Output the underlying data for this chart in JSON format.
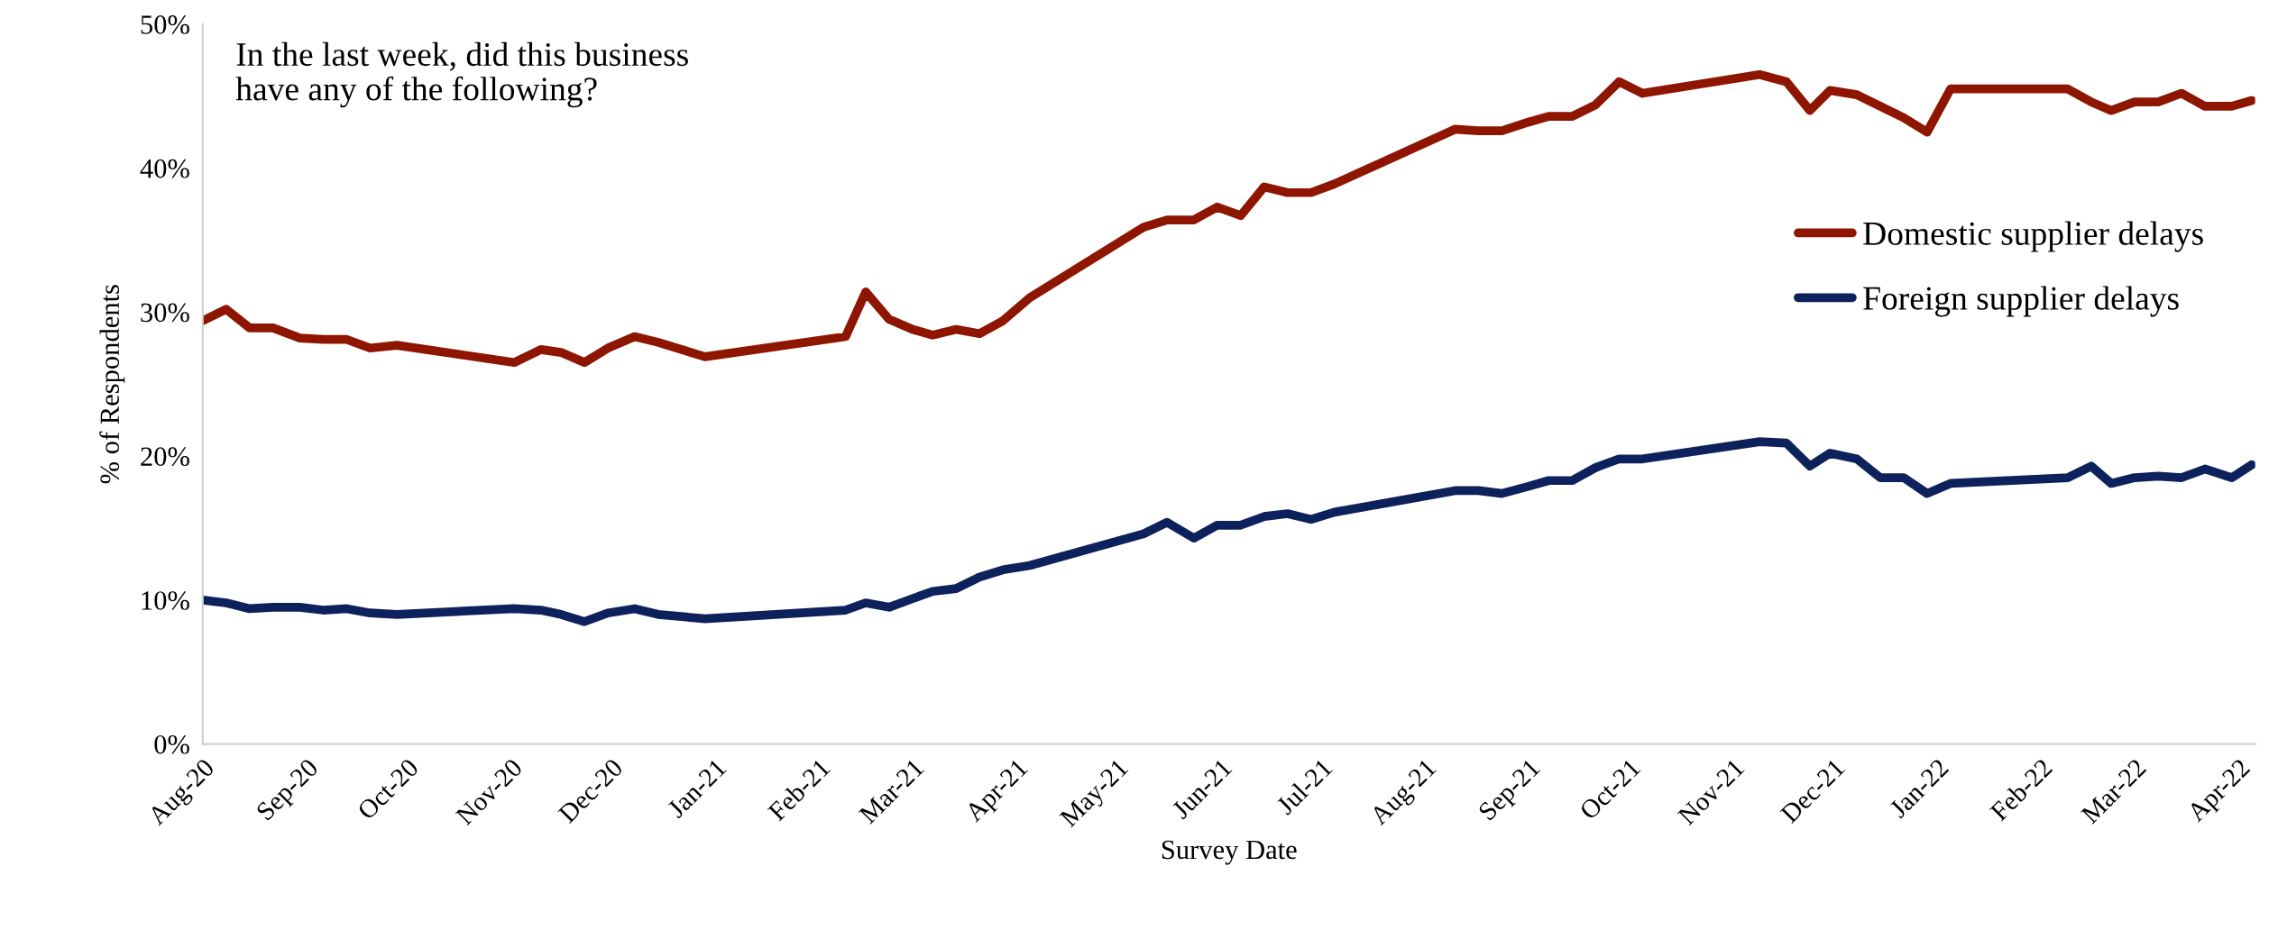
{
  "chart_data": {
    "type": "line",
    "title": "In the last week, did this business\nhave any of the following?",
    "xlabel": "Survey Date",
    "ylabel": "% of Respondents",
    "series": [
      {
        "name": "Domestic supplier delays",
        "color": "#8e1600",
        "x": [
          "2020-08-01",
          "2020-08-08",
          "2020-08-15",
          "2020-08-22",
          "2020-08-30",
          "2020-09-06",
          "2020-09-13",
          "2020-09-20",
          "2020-09-28",
          "2020-11-02",
          "2020-11-10",
          "2020-11-16",
          "2020-11-23",
          "2020-11-30",
          "2020-12-08",
          "2020-12-15",
          "2020-12-29",
          "2021-02-09",
          "2021-02-15",
          "2021-02-22",
          "2021-03-01",
          "2021-03-07",
          "2021-03-14",
          "2021-03-21",
          "2021-03-28",
          "2021-04-05",
          "2021-05-09",
          "2021-05-16",
          "2021-05-24",
          "2021-05-31",
          "2021-06-07",
          "2021-06-14",
          "2021-06-21",
          "2021-06-28",
          "2021-07-05",
          "2021-08-10",
          "2021-08-17",
          "2021-08-24",
          "2021-09-01",
          "2021-09-07",
          "2021-09-14",
          "2021-09-21",
          "2021-09-28",
          "2021-10-05",
          "2021-11-09",
          "2021-11-17",
          "2021-11-24",
          "2021-11-30",
          "2021-12-08",
          "2021-12-15",
          "2021-12-22",
          "2021-12-29",
          "2022-01-05",
          "2022-02-09",
          "2022-02-16",
          "2022-02-22",
          "2022-03-01",
          "2022-03-08",
          "2022-03-15",
          "2022-03-22",
          "2022-03-30",
          "2022-04-05"
        ],
        "values": [
          29.4,
          30.2,
          28.9,
          28.9,
          28.2,
          28.1,
          28.1,
          27.5,
          27.7,
          26.5,
          27.4,
          27.2,
          26.5,
          27.5,
          28.3,
          27.9,
          26.9,
          28.3,
          31.4,
          29.5,
          28.8,
          28.4,
          28.8,
          28.5,
          29.4,
          31.0,
          35.9,
          36.4,
          36.4,
          37.3,
          36.7,
          38.7,
          38.3,
          38.3,
          38.9,
          42.7,
          42.6,
          42.6,
          43.2,
          43.6,
          43.6,
          44.4,
          46.0,
          45.2,
          46.5,
          46.0,
          44.0,
          45.4,
          45.1,
          44.3,
          43.5,
          42.5,
          45.5,
          45.5,
          44.6,
          44.0,
          44.6,
          44.6,
          45.2,
          44.3,
          44.3,
          44.7
        ]
      },
      {
        "name": "Foreign supplier delays",
        "color": "#0d215c",
        "x": [
          "2020-08-01",
          "2020-08-08",
          "2020-08-15",
          "2020-08-22",
          "2020-08-30",
          "2020-09-06",
          "2020-09-13",
          "2020-09-20",
          "2020-09-28",
          "2020-11-02",
          "2020-11-10",
          "2020-11-16",
          "2020-11-23",
          "2020-11-30",
          "2020-12-08",
          "2020-12-15",
          "2020-12-29",
          "2021-02-09",
          "2021-02-15",
          "2021-02-22",
          "2021-03-01",
          "2021-03-07",
          "2021-03-14",
          "2021-03-21",
          "2021-03-28",
          "2021-04-05",
          "2021-05-09",
          "2021-05-16",
          "2021-05-24",
          "2021-05-31",
          "2021-06-07",
          "2021-06-14",
          "2021-06-21",
          "2021-06-28",
          "2021-07-05",
          "2021-08-10",
          "2021-08-17",
          "2021-08-24",
          "2021-09-01",
          "2021-09-07",
          "2021-09-14",
          "2021-09-21",
          "2021-09-28",
          "2021-10-05",
          "2021-11-09",
          "2021-11-17",
          "2021-11-24",
          "2021-11-30",
          "2021-12-08",
          "2021-12-15",
          "2021-12-22",
          "2021-12-29",
          "2022-01-05",
          "2022-02-09",
          "2022-02-16",
          "2022-02-22",
          "2022-03-01",
          "2022-03-08",
          "2022-03-15",
          "2022-03-22",
          "2022-03-30",
          "2022-04-05"
        ],
        "values": [
          10.0,
          9.8,
          9.4,
          9.5,
          9.5,
          9.3,
          9.4,
          9.1,
          9.0,
          9.4,
          9.3,
          9.0,
          8.5,
          9.1,
          9.4,
          9.0,
          8.7,
          9.3,
          9.8,
          9.5,
          10.1,
          10.6,
          10.8,
          11.6,
          12.1,
          12.4,
          14.6,
          15.4,
          14.3,
          15.2,
          15.2,
          15.8,
          16.0,
          15.6,
          16.1,
          17.6,
          17.6,
          17.4,
          17.9,
          18.3,
          18.3,
          19.2,
          19.8,
          19.8,
          21.0,
          20.9,
          19.3,
          20.2,
          19.8,
          18.5,
          18.5,
          17.4,
          18.1,
          18.5,
          19.3,
          18.1,
          18.5,
          18.6,
          18.5,
          19.1,
          18.5,
          19.4
        ]
      }
    ],
    "xlim": [
      "2020-08-01",
      "2022-04-06"
    ],
    "xticks": [
      {
        "value": "2020-08-01",
        "label": "Aug-20"
      },
      {
        "value": "2020-09-01",
        "label": "Sep-20"
      },
      {
        "value": "2020-10-01",
        "label": "Oct-20"
      },
      {
        "value": "2020-11-01",
        "label": "Nov-20"
      },
      {
        "value": "2020-12-01",
        "label": "Dec-20"
      },
      {
        "value": "2021-01-01",
        "label": "Jan-21"
      },
      {
        "value": "2021-02-01",
        "label": "Feb-21"
      },
      {
        "value": "2021-03-01",
        "label": "Mar-21"
      },
      {
        "value": "2021-04-01",
        "label": "Apr-21"
      },
      {
        "value": "2021-05-01",
        "label": "May-21"
      },
      {
        "value": "2021-06-01",
        "label": "Jun-21"
      },
      {
        "value": "2021-07-01",
        "label": "Jul-21"
      },
      {
        "value": "2021-08-01",
        "label": "Aug-21"
      },
      {
        "value": "2021-09-01",
        "label": "Sep-21"
      },
      {
        "value": "2021-10-01",
        "label": "Oct-21"
      },
      {
        "value": "2021-11-01",
        "label": "Nov-21"
      },
      {
        "value": "2021-12-01",
        "label": "Dec-21"
      },
      {
        "value": "2022-01-01",
        "label": "Jan-22"
      },
      {
        "value": "2022-02-01",
        "label": "Feb-22"
      },
      {
        "value": "2022-03-01",
        "label": "Mar-22"
      },
      {
        "value": "2022-04-01",
        "label": "Apr-22"
      }
    ],
    "ylim": [
      0,
      50
    ],
    "yticks": [
      {
        "value": 0,
        "label": "0%"
      },
      {
        "value": 10,
        "label": "10%"
      },
      {
        "value": 20,
        "label": "20%"
      },
      {
        "value": 30,
        "label": "30%"
      },
      {
        "value": 40,
        "label": "40%"
      },
      {
        "value": 50,
        "label": "50%"
      }
    ],
    "grid": false,
    "legend": "right",
    "marker": "none",
    "line_style": "solid"
  }
}
